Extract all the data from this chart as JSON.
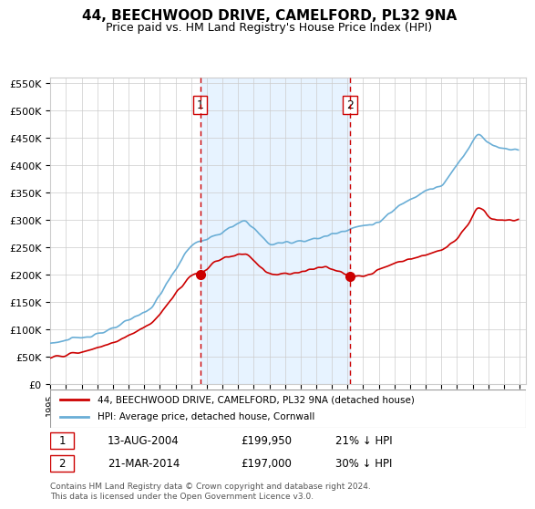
{
  "title": "44, BEECHWOOD DRIVE, CAMELFORD, PL32 9NA",
  "subtitle": "Price paid vs. HM Land Registry's House Price Index (HPI)",
  "legend_line1": "44, BEECHWOOD DRIVE, CAMELFORD, PL32 9NA (detached house)",
  "legend_line2": "HPI: Average price, detached house, Cornwall",
  "sale1_date": "13-AUG-2004",
  "sale1_price": 199950,
  "sale1_label": "1",
  "sale1_pct": "21% ↓ HPI",
  "sale2_date": "21-MAR-2014",
  "sale2_price": 197000,
  "sale2_label": "2",
  "sale2_pct": "30% ↓ HPI",
  "footnote": "Contains HM Land Registry data © Crown copyright and database right 2024.\nThis data is licensed under the Open Government Licence v3.0.",
  "ylim": [
    0,
    560000
  ],
  "yticks": [
    0,
    50000,
    100000,
    150000,
    200000,
    250000,
    300000,
    350000,
    400000,
    450000,
    500000,
    550000
  ],
  "hpi_color": "#6aaed6",
  "price_color": "#cc0000",
  "vline_color": "#cc0000",
  "shade_color": "#ddeeff",
  "marker_color": "#cc0000",
  "bg_color": "#ffffff",
  "grid_color": "#cccccc",
  "title_color": "#000000",
  "box_color": "#cc0000"
}
